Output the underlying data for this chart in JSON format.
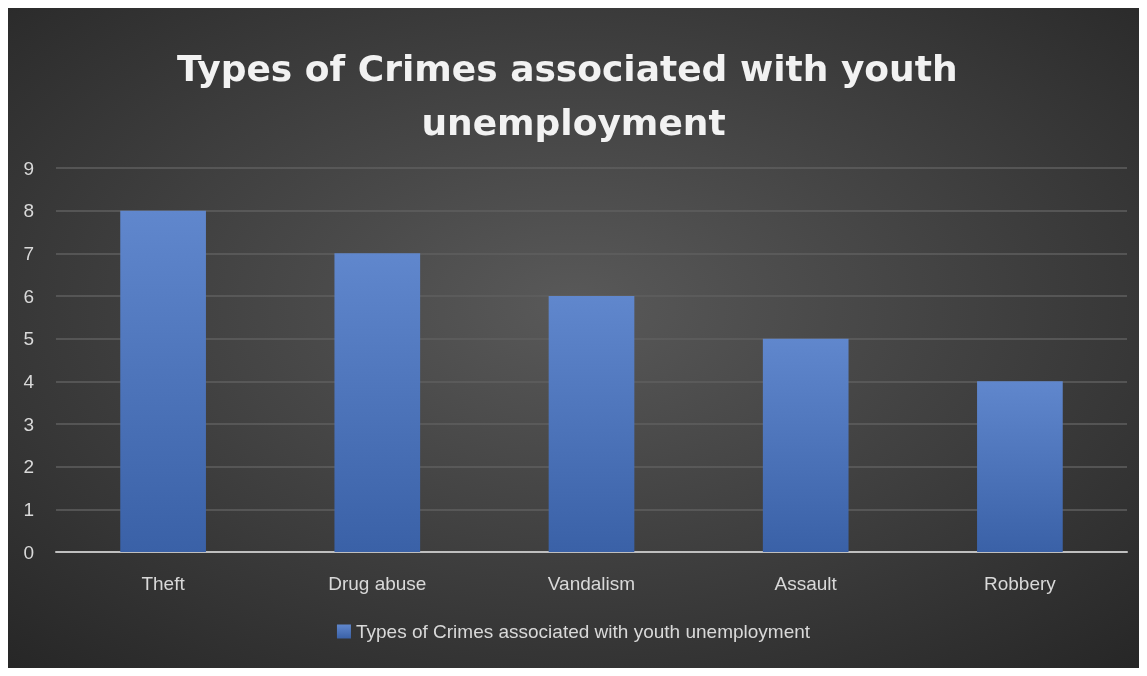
{
  "chart_data": {
    "type": "bar",
    "title": "Types of Crimes associated with youth unemployment",
    "categories": [
      "Theft",
      "Drug abuse",
      "Vandalism",
      "Assault",
      "Robbery"
    ],
    "series": [
      {
        "name": "Types of Crimes associated with youth unemployment",
        "color": "#4472c4",
        "values": [
          8,
          7,
          6,
          5,
          4
        ]
      }
    ],
    "ylim": [
      0,
      9
    ],
    "yticks": [
      0,
      1,
      2,
      3,
      4,
      5,
      6,
      7,
      8,
      9
    ],
    "grid": "y",
    "legend": "bottom"
  }
}
